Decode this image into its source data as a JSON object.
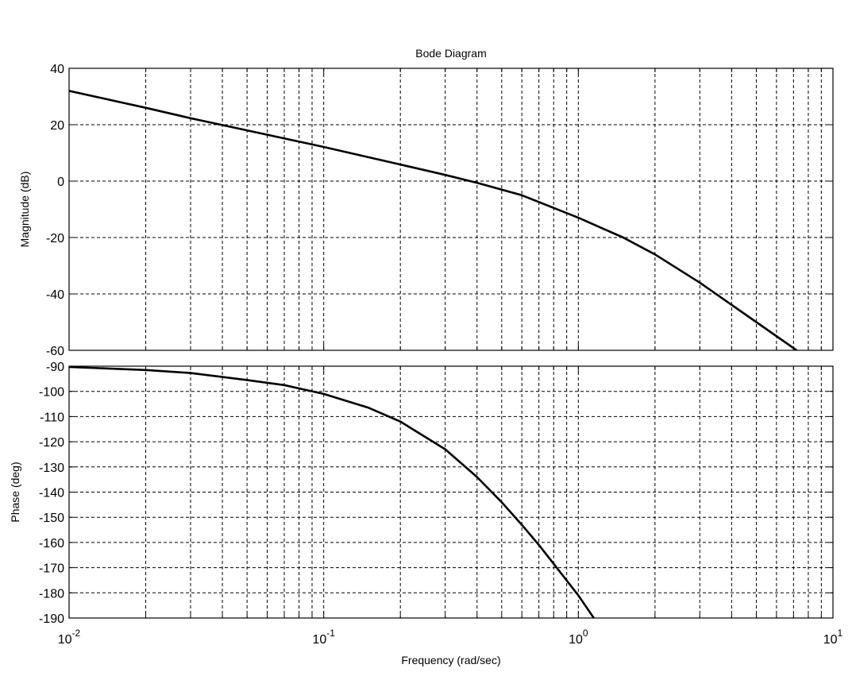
{
  "chart_data": [
    {
      "type": "line",
      "title": "Bode Diagram",
      "ylabel": "Magnitude (dB)",
      "xlabel": "",
      "xscale": "log",
      "xlim": [
        0.01,
        10
      ],
      "ylim": [
        -60,
        40
      ],
      "yticks": [
        "40",
        "20",
        "0",
        "-20",
        "-40",
        "-60"
      ],
      "grid": true,
      "series": [
        {
          "x": [
            0.01,
            0.02,
            0.03,
            0.05,
            0.1,
            0.2,
            0.3,
            0.4,
            0.6,
            1.0,
            1.5,
            2.0,
            3.0,
            5.0,
            7.2
          ],
          "values": [
            32,
            26,
            22.3,
            18,
            12.1,
            5.9,
            2.2,
            -0.6,
            -5,
            -13,
            -20,
            -26,
            -36,
            -50,
            -60
          ]
        }
      ]
    },
    {
      "type": "line",
      "ylabel": "Phase (deg)",
      "xlabel": "Frequency  (rad/sec)",
      "xscale": "log",
      "xlim": [
        0.01,
        10
      ],
      "ylim": [
        -190,
        -90
      ],
      "xticks": [
        {
          "base": "10",
          "exp": "-2"
        },
        {
          "base": "10",
          "exp": "-1"
        },
        {
          "base": "10",
          "exp": "0"
        },
        {
          "base": "10",
          "exp": "1"
        }
      ],
      "yticks": [
        "-90",
        "-100",
        "-110",
        "-120",
        "-130",
        "-140",
        "-150",
        "-160",
        "-170",
        "-180",
        "-190"
      ],
      "grid": true,
      "series": [
        {
          "x": [
            0.01,
            0.02,
            0.03,
            0.05,
            0.07,
            0.1,
            0.15,
            0.2,
            0.3,
            0.4,
            0.5,
            0.6,
            0.7,
            0.8,
            1.0,
            1.15
          ],
          "values": [
            -90.3,
            -91.5,
            -92.7,
            -95.5,
            -97.5,
            -101,
            -106.5,
            -112,
            -123,
            -134,
            -144,
            -153,
            -161,
            -168.5,
            -181,
            -190
          ]
        }
      ]
    }
  ]
}
